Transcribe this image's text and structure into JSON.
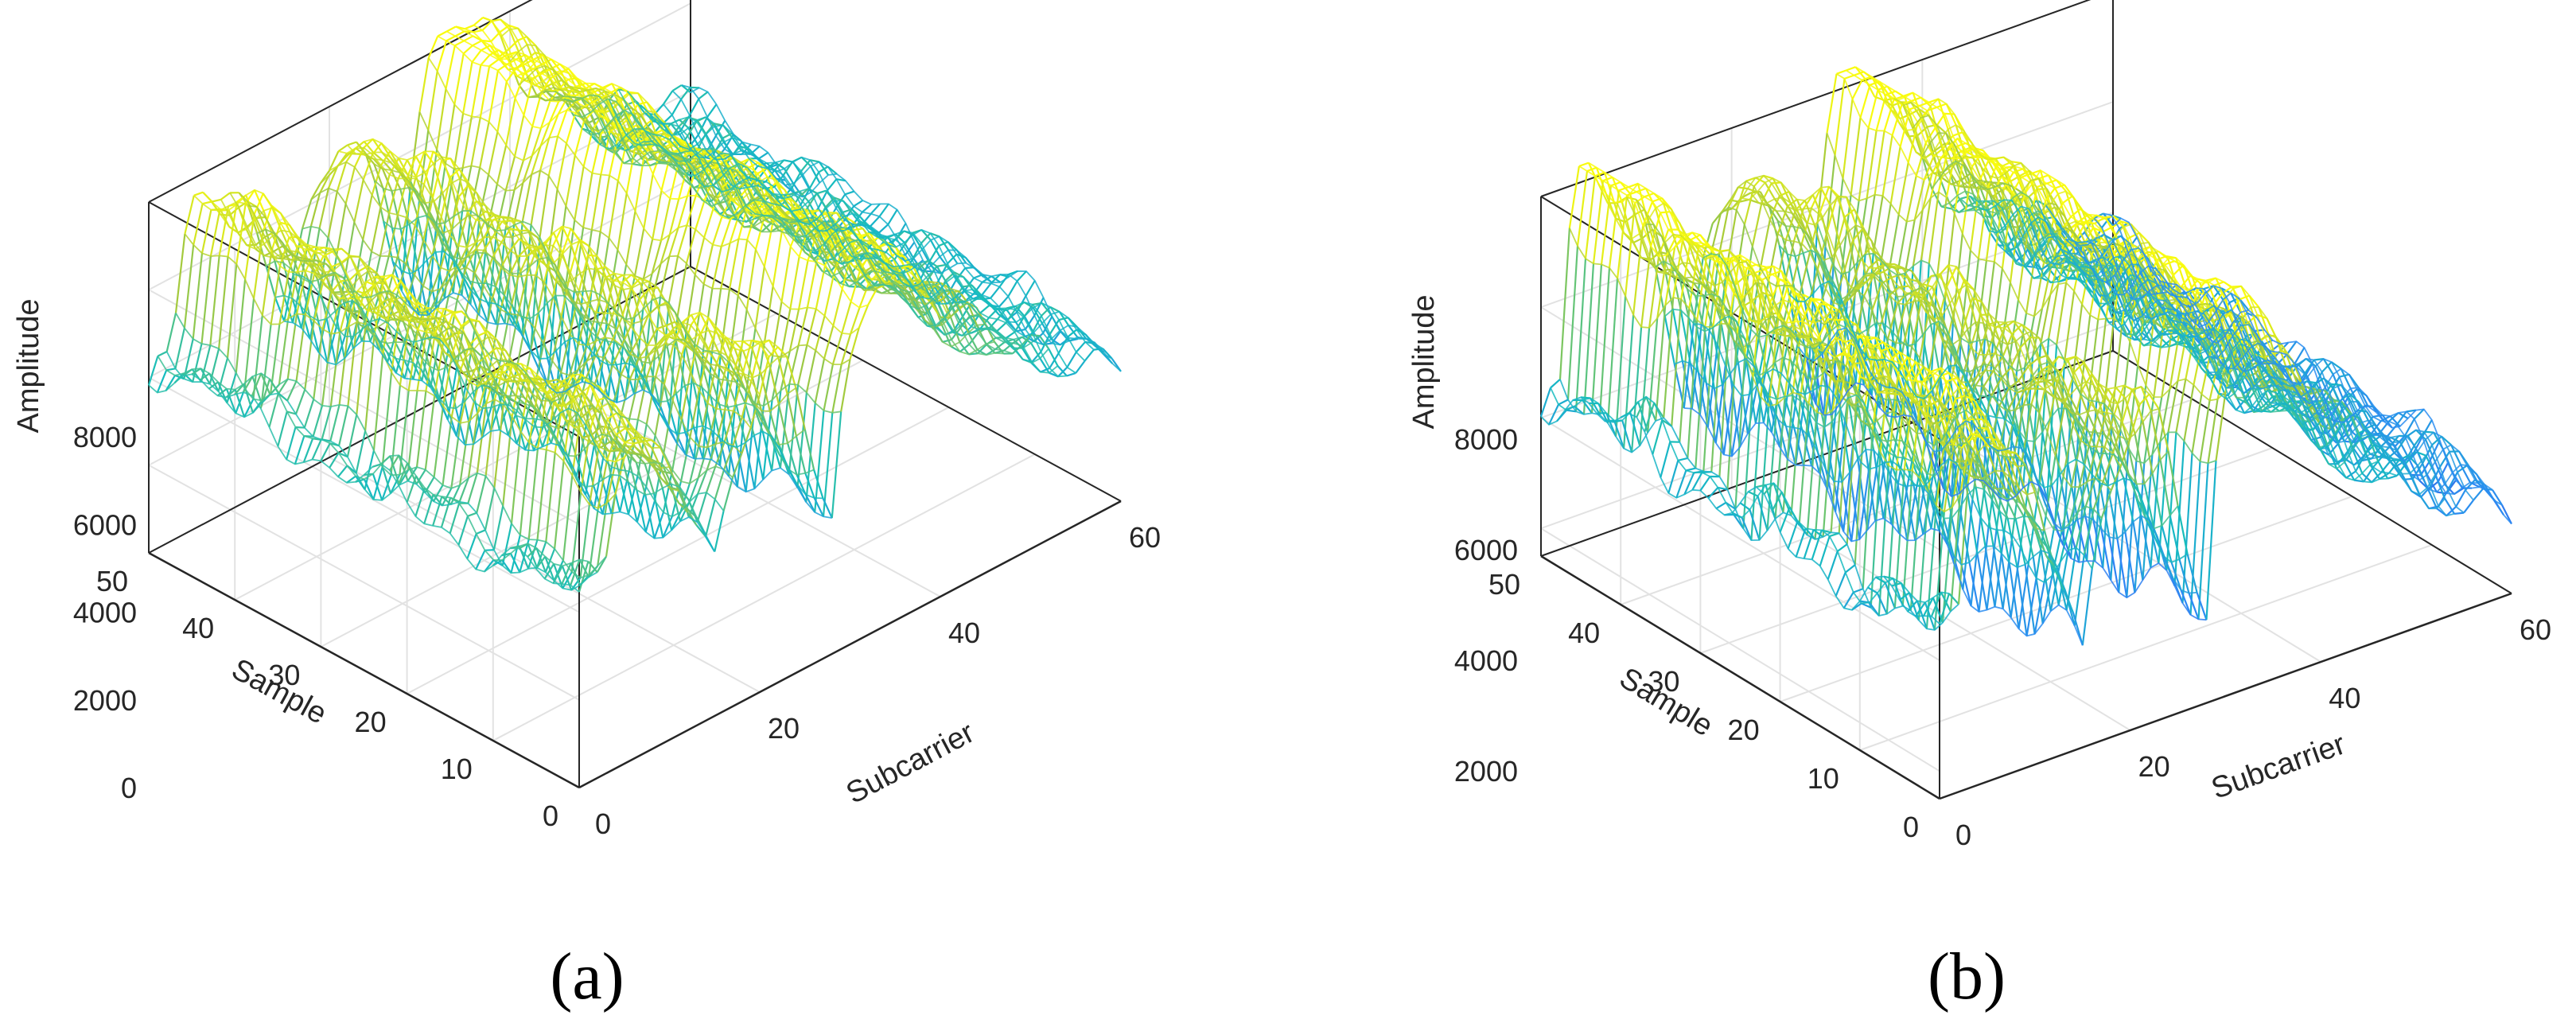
{
  "chart_data": [
    {
      "type": "surface-mesh",
      "caption": "(a)",
      "xlabel": "Subcarrier",
      "ylabel": "Sample",
      "zlabel": "Amplitude",
      "x_range": [
        0,
        60
      ],
      "y_range": [
        0,
        50
      ],
      "z_range": [
        0,
        8000
      ],
      "x_ticks": [
        "0",
        "20",
        "40",
        "60"
      ],
      "y_ticks": [
        "0",
        "10",
        "20",
        "30",
        "40",
        "50"
      ],
      "z_ticks": [
        "0",
        "2000",
        "4000",
        "6000",
        "8000"
      ],
      "colormap": "parula",
      "grid": true,
      "subcarrier_profile": [
        4300,
        4600,
        4200,
        4700,
        6400,
        7400,
        7600,
        7300,
        7000,
        6700,
        6400,
        6100,
        5700,
        5200,
        4500,
        3700,
        4400,
        5200,
        5900,
        6500,
        7000,
        7400,
        7200,
        6800,
        6200,
        5500,
        4700,
        3900,
        3100,
        5200,
        6300,
        7200,
        8000,
        8500,
        8400,
        8200,
        8000,
        7800,
        7500,
        7200,
        6900,
        6600,
        6300,
        6000,
        5700,
        5400,
        5200,
        5000,
        4800,
        4600,
        4500,
        4400,
        4300,
        4200,
        4100,
        4000,
        3900,
        3800,
        3700,
        3600,
        3500
      ]
    },
    {
      "type": "surface-mesh",
      "caption": "(b)",
      "xlabel": "Subcarrier",
      "ylabel": "Sample",
      "zlabel": "Amplitude",
      "x_range": [
        0,
        60
      ],
      "y_range": [
        0,
        50
      ],
      "z_range": [
        1500,
        8000
      ],
      "x_ticks": [
        "0",
        "20",
        "40",
        "60"
      ],
      "y_ticks": [
        "0",
        "10",
        "20",
        "30",
        "40",
        "50"
      ],
      "z_ticks": [
        "2000",
        "4000",
        "6000",
        "8000"
      ],
      "colormap": "parula",
      "grid": true,
      "subcarrier_profile": [
        4500,
        4700,
        4400,
        6800,
        8100,
        8300,
        7900,
        7500,
        7200,
        6900,
        6600,
        6200,
        5700,
        5100,
        4300,
        3300,
        4500,
        5500,
        6200,
        6700,
        7000,
        7200,
        7000,
        6600,
        6000,
        5300,
        4600,
        3800,
        3000,
        5600,
        6800,
        7800,
        8300,
        8200,
        8000,
        7700,
        7400,
        7100,
        6800,
        6500,
        6300,
        6000,
        5700,
        5400,
        5200,
        5000,
        4800,
        4600,
        4500,
        4400,
        4300,
        4200,
        4100,
        4000,
        3900,
        3800,
        3700,
        3600,
        3500,
        3400,
        3300
      ]
    }
  ]
}
